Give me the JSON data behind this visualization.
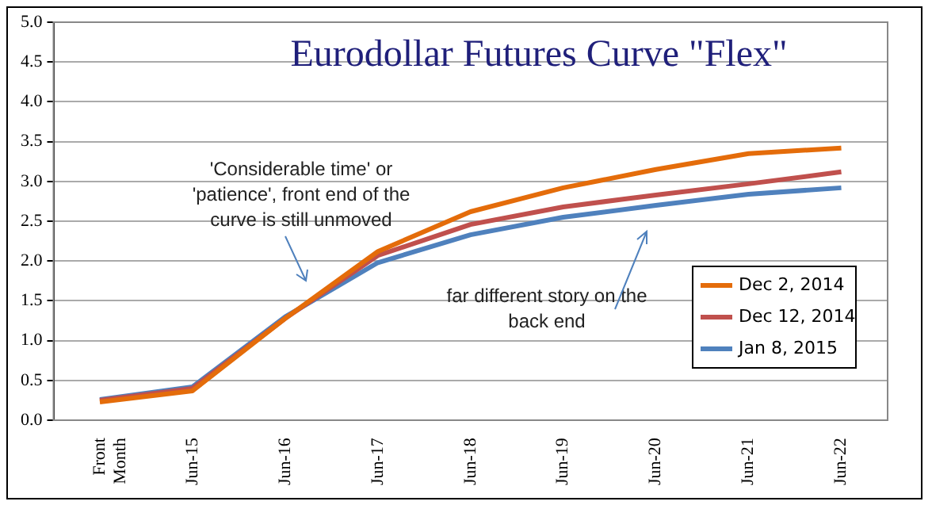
{
  "chart_data": {
    "type": "line",
    "title": "Eurodollar Futures Curve \"Flex\"",
    "categories": [
      "Front Month",
      "Jun-15",
      "Jun-16",
      "Jun-17",
      "Jun-18",
      "Jun-19",
      "Jun-20",
      "Jun-21",
      "Jun-22"
    ],
    "series": [
      {
        "name": "Dec 2, 2014",
        "color": "#e46c0a",
        "values": [
          0.23,
          0.37,
          1.28,
          2.12,
          2.62,
          2.92,
          3.15,
          3.35,
          3.42
        ]
      },
      {
        "name": "Dec 12, 2014",
        "color": "#c0504d",
        "values": [
          0.25,
          0.4,
          1.28,
          2.07,
          2.46,
          2.68,
          2.83,
          2.97,
          3.12
        ]
      },
      {
        "name": "Jan 8, 2015",
        "color": "#4f81bd",
        "values": [
          0.26,
          0.42,
          1.3,
          1.98,
          2.33,
          2.55,
          2.7,
          2.84,
          2.92
        ]
      }
    ],
    "ylim": [
      0,
      5
    ],
    "yticks": [
      {
        "value": 0,
        "label": "0.0"
      },
      0.5,
      {
        "value": 1,
        "label": "1.0"
      },
      1.5,
      {
        "value": 2,
        "label": "2.0"
      },
      2.5,
      {
        "value": 3,
        "label": "3.0"
      },
      3.5,
      {
        "value": 4,
        "label": "4.0"
      },
      4.5,
      {
        "value": 5,
        "label": "5.0"
      }
    ],
    "grid": "y",
    "legend": "right",
    "marker": "none",
    "line_style": "solid",
    "annotations": [
      "'Considerable time' or 'patience', front end of the curve is still unmoved",
      "far different story on the back end"
    ]
  }
}
